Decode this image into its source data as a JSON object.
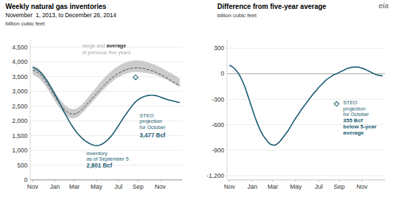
{
  "chart_data": [
    {
      "type": "line",
      "title": "Weekly natural gas inventories",
      "subtitle": "November  1, 2013, to December 26, 2014",
      "ylabel": "billion cubic feet",
      "x": [
        0,
        1,
        2,
        3,
        4,
        5,
        6,
        7,
        8,
        9,
        10,
        11,
        12,
        13,
        14,
        15,
        16,
        17,
        18,
        19,
        20,
        21,
        22,
        23,
        24,
        25,
        26,
        27,
        28,
        29,
        30,
        31,
        32,
        33,
        34,
        35,
        36,
        37,
        38,
        39,
        40,
        41,
        42,
        43,
        44,
        45,
        46,
        47,
        48,
        49,
        50,
        51,
        52,
        53,
        54,
        55,
        56,
        57,
        58,
        59,
        60
      ],
      "xlim": [
        -1,
        61
      ],
      "xticks": [
        {
          "value": 0,
          "label": "Nov"
        },
        {
          "value": 9,
          "label": "Jan"
        },
        {
          "value": 17,
          "label": "Mar"
        },
        {
          "value": 26,
          "label": "May"
        },
        {
          "value": 35,
          "label": "Jul"
        },
        {
          "value": 43,
          "label": "Sep"
        },
        {
          "value": 52,
          "label": "Nov"
        }
      ],
      "ylim": [
        0,
        4750
      ],
      "yticks": [
        0,
        500,
        {
          "value": 1000,
          "label": "1,000"
        },
        {
          "value": 1500,
          "label": "1,500"
        },
        {
          "value": 2000,
          "label": "2,000"
        },
        {
          "value": 2500,
          "label": "2,500"
        },
        {
          "value": 3000,
          "label": "3,000"
        },
        {
          "value": 3500,
          "label": "3,500"
        },
        {
          "value": 4000,
          "label": "4,000"
        },
        {
          "value": 4500,
          "label": "4,500"
        }
      ],
      "grid": true,
      "series": [
        {
          "type": "area",
          "color": "#b0b0b0",
          "low": [
            3570,
            3530,
            3480,
            3410,
            3320,
            3210,
            3090,
            2960,
            2820,
            2680,
            2550,
            2430,
            2320,
            2230,
            2160,
            2110,
            2080,
            2090,
            2120,
            2170,
            2250,
            2330,
            2420,
            2520,
            2610,
            2700,
            2800,
            2890,
            2980,
            3070,
            3150,
            3230,
            3300,
            3370,
            3430,
            3480,
            3530,
            3570,
            3600,
            3620,
            3640,
            3660,
            3660,
            3660,
            3650,
            3640,
            3630,
            3610,
            3600,
            3580,
            3560,
            3530,
            3490,
            3460,
            3420,
            3380,
            3330,
            3290,
            3240,
            3190,
            3150
          ],
          "high": [
            3870,
            3840,
            3800,
            3730,
            3640,
            3530,
            3400,
            3270,
            3130,
            2990,
            2860,
            2740,
            2640,
            2550,
            2480,
            2430,
            2400,
            2400,
            2430,
            2480,
            2550,
            2640,
            2740,
            2840,
            2940,
            3040,
            3140,
            3250,
            3350,
            3440,
            3530,
            3610,
            3680,
            3750,
            3810,
            3860,
            3910,
            3950,
            3980,
            4010,
            4030,
            4040,
            4050,
            4050,
            4040,
            4030,
            4010,
            3990,
            3960,
            3930,
            3900,
            3860,
            3820,
            3780,
            3730,
            3680,
            3640,
            3590,
            3540,
            3490,
            3440
          ]
        },
        {
          "type": "line",
          "line_style": "dashed",
          "color": "#444444",
          "values": [
            3720,
            3690,
            3640,
            3570,
            3480,
            3370,
            3240,
            3110,
            2970,
            2830,
            2700,
            2580,
            2470,
            2380,
            2310,
            2260,
            2230,
            2230,
            2260,
            2310,
            2380,
            2460,
            2550,
            2640,
            2730,
            2830,
            2920,
            3020,
            3110,
            3200,
            3280,
            3360,
            3430,
            3500,
            3560,
            3610,
            3660,
            3700,
            3730,
            3760,
            3780,
            3790,
            3800,
            3800,
            3790,
            3780,
            3760,
            3740,
            3720,
            3690,
            3660,
            3620,
            3580,
            3540,
            3490,
            3440,
            3390,
            3340,
            3290,
            3240,
            3190
          ]
        },
        {
          "type": "line",
          "line_style": "solid",
          "color": "#1a5c72",
          "values": [
            3820,
            3780,
            3730,
            3660,
            3570,
            3460,
            3340,
            3200,
            3060,
            2910,
            2760,
            2600,
            2440,
            2280,
            2120,
            1970,
            1840,
            1710,
            1600,
            1510,
            1420,
            1350,
            1290,
            1240,
            1200,
            1170,
            1160,
            1170,
            1200,
            1250,
            1310,
            1390,
            1480,
            1590,
            1710,
            1840,
            1970,
            2100,
            2220,
            2340,
            2450,
            2560,
            2650,
            2720,
            2770,
            2810,
            2840,
            2860,
            2870,
            2870,
            2860,
            2840,
            2810,
            2780,
            2750,
            2720,
            2700,
            2680,
            2660,
            2640,
            2620
          ]
        },
        {
          "type": "scatter",
          "marker": "diamond",
          "color": "#1a5c72",
          "x": [
            42
          ],
          "values": [
            3477
          ]
        }
      ],
      "annotations": [
        {
          "text": "range and ",
          "color": "#aaaaaa"
        },
        {
          "text": "average",
          "color": "#333333"
        },
        {
          "text": "of previous five years",
          "color": "#aaaaaa"
        },
        {
          "text": "inventory\nas of September 5",
          "color": "#1a5c72"
        },
        {
          "text": "2,801 Bcf",
          "color": "#1a5c72"
        },
        {
          "text": "STEO\nprojection\nfor October",
          "color": "#1a5c72"
        },
        {
          "text": "3,477 Bcf",
          "color": "#1a5c72"
        }
      ]
    },
    {
      "type": "line",
      "title": "Difference from five-year average",
      "ylabel": "billion cubic feet",
      "x": [
        0,
        1,
        2,
        3,
        4,
        5,
        6,
        7,
        8,
        9,
        10,
        11,
        12,
        13,
        14,
        15,
        16,
        17,
        18,
        19,
        20,
        21,
        22,
        23,
        24,
        25,
        26,
        27,
        28,
        29,
        30,
        31,
        32,
        33,
        34,
        35,
        36,
        37,
        38,
        39,
        40,
        41,
        42,
        43,
        44,
        45,
        46,
        47,
        48,
        49,
        50,
        51,
        52,
        53,
        54,
        55,
        56,
        57,
        58,
        59,
        60
      ],
      "xlim": [
        -1,
        61
      ],
      "xticks": [
        {
          "value": 0,
          "label": "Nov"
        },
        {
          "value": 9,
          "label": "Jan"
        },
        {
          "value": 17,
          "label": "Mar"
        },
        {
          "value": 26,
          "label": "May"
        },
        {
          "value": 35,
          "label": "Jul"
        },
        {
          "value": 43,
          "label": "Sep"
        },
        {
          "value": 52,
          "label": "Nov"
        }
      ],
      "ylim": [
        -1250,
        400
      ],
      "yticks": [
        {
          "value": -1200,
          "label": "-1,200"
        },
        -900,
        -600,
        -300,
        0,
        300
      ],
      "grid": true,
      "series": [
        {
          "type": "line",
          "line_style": "solid",
          "color": "#1a5c72",
          "values": [
            100,
            85,
            60,
            25,
            -20,
            -80,
            -150,
            -240,
            -330,
            -420,
            -510,
            -590,
            -660,
            -720,
            -760,
            -800,
            -830,
            -840,
            -840,
            -820,
            -790,
            -750,
            -710,
            -670,
            -620,
            -570,
            -520,
            -480,
            -430,
            -390,
            -350,
            -310,
            -270,
            -230,
            -200,
            -160,
            -130,
            -100,
            -70,
            -50,
            -30,
            -10,
            0,
            15,
            30,
            45,
            60,
            70,
            75,
            80,
            80,
            75,
            65,
            55,
            40,
            25,
            10,
            -5,
            -15,
            -20,
            -25
          ]
        },
        {
          "type": "scatter",
          "marker": "diamond",
          "color": "#1a5c72",
          "x": [
            42
          ],
          "values": [
            -355
          ]
        }
      ],
      "annotations": [
        {
          "text": "STEO\nprojection\nfor October",
          "color": "#1a5c72"
        },
        {
          "text": "355 Bcf\nbelow 5-year\naverage",
          "color": "#1a5c72"
        },
        {
          "text": "eia",
          "color": "#888888"
        }
      ]
    }
  ]
}
